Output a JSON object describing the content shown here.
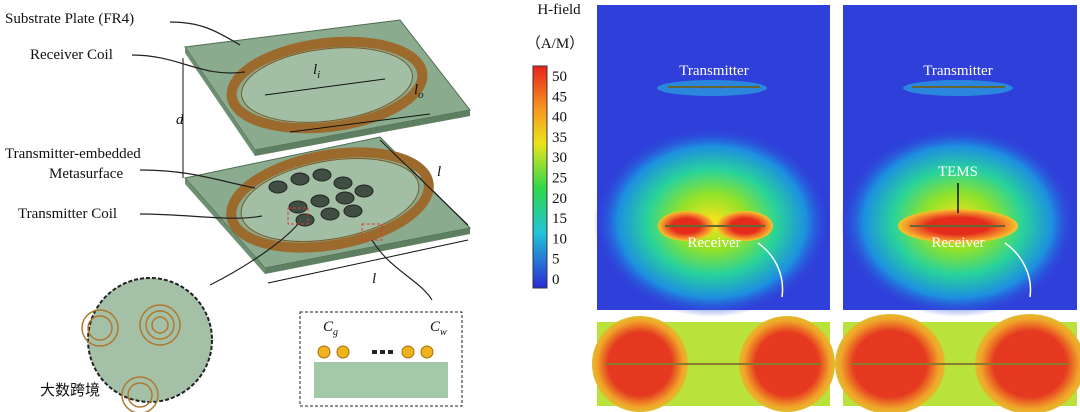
{
  "labels": {
    "substrate": "Substrate Plate (FR4)",
    "receiver_coil": "Receiver Coil",
    "metasurface_1": "Transmitter-embedded",
    "metasurface_2": "Metasurface",
    "transmitter_coil": "Transmitter Coil"
  },
  "dimensions": {
    "d": "d",
    "l_side": "l",
    "l_bottom": "l",
    "li": {
      "base": "l",
      "sub": "i"
    },
    "lo": {
      "base": "l",
      "sub": "o"
    },
    "cg": {
      "base": "C",
      "sub": "g"
    },
    "cw": {
      "base": "C",
      "sub": "w"
    }
  },
  "colorbar": {
    "title": "H-field",
    "unit": "（A/M）",
    "ticks": [
      50,
      45,
      40,
      35,
      30,
      25,
      20,
      15,
      10,
      5,
      0
    ]
  },
  "panels": [
    {
      "transmitter": "Transmitter",
      "receiver": "Receiver"
    },
    {
      "transmitter": "Transmitter",
      "tems": "TEMS",
      "receiver": "Receiver"
    }
  ],
  "watermark": "大数跨境"
}
